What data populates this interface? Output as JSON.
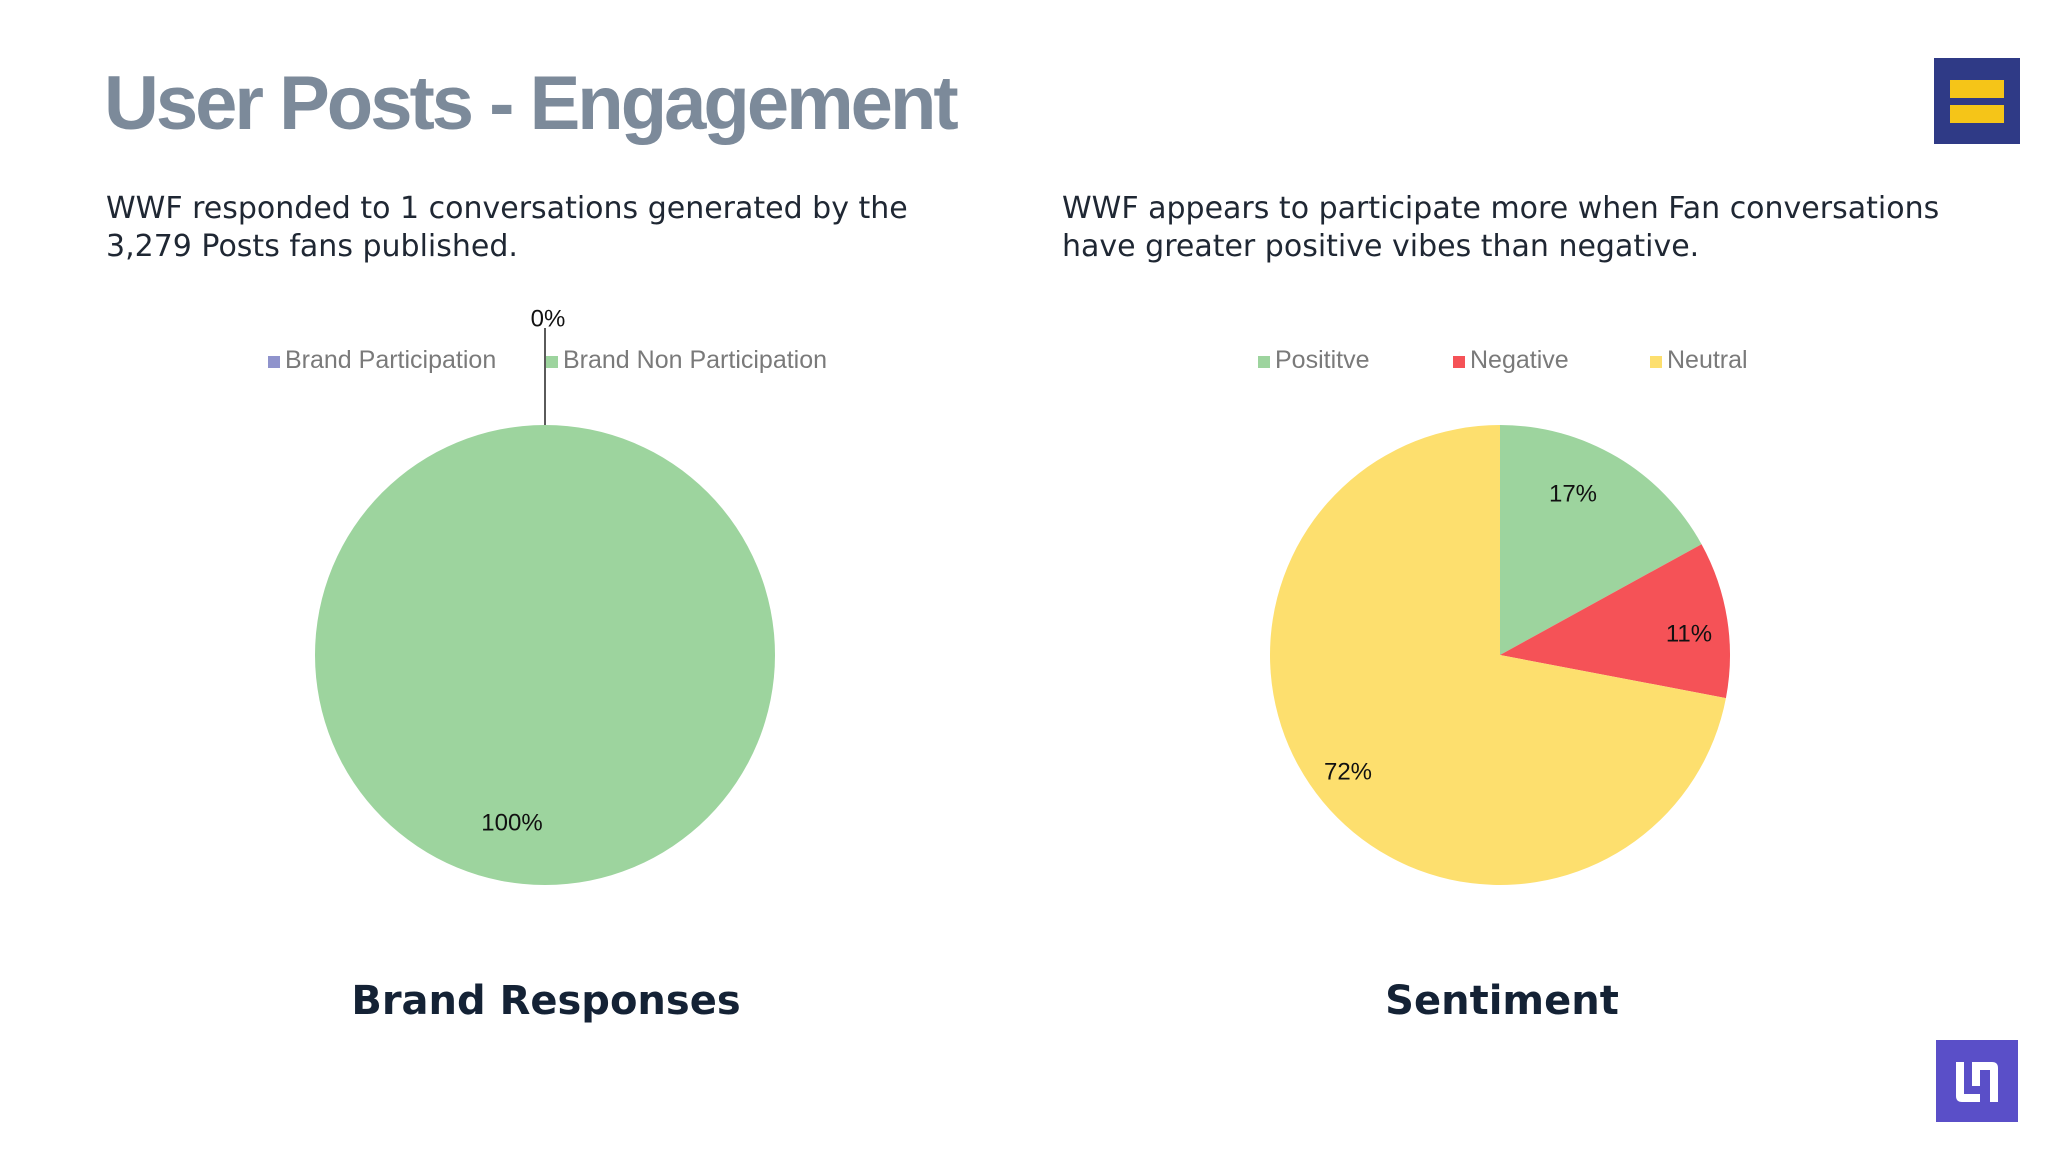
{
  "slide": {
    "title": "User Posts - Engagement",
    "left_description": "WWF responded to 1 conversations generated by the\n3,279 Posts fans published.",
    "right_description": "WWF appears to participate more when Fan conversations\nhave greater positive vibes than negative."
  },
  "chart_data": [
    {
      "type": "pie",
      "title": "Brand Responses",
      "categories": [
        "Brand Participation",
        "Brand Non Participation"
      ],
      "values": [
        0,
        100
      ],
      "labels": [
        "0%",
        "100%"
      ],
      "colors": [
        "#8f93cc",
        "#9dd49e"
      ],
      "legend": "top"
    },
    {
      "type": "pie",
      "title": "Sentiment",
      "categories": [
        "Posititve",
        "Negative",
        "Neutral"
      ],
      "values": [
        17,
        11,
        72
      ],
      "labels": [
        "17%",
        "11%",
        "72%"
      ],
      "colors": [
        "#9dd49e",
        "#f55257",
        "#fddf6e"
      ],
      "legend": "top"
    }
  ],
  "logos": {
    "top_right": "hrc-equality-logo",
    "bottom_right": "brand-corner-logo"
  }
}
